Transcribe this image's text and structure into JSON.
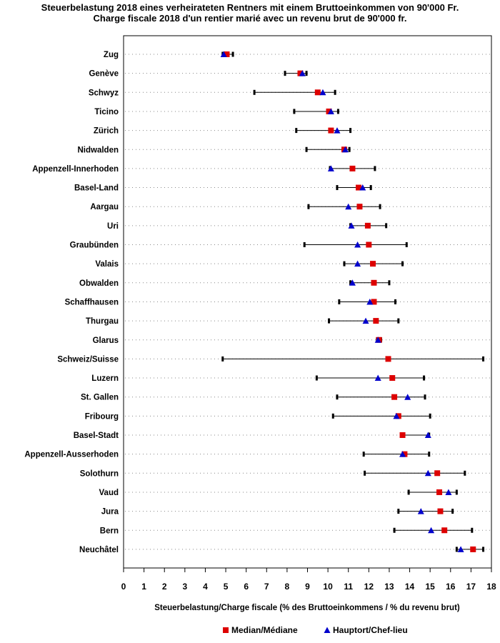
{
  "chart_data": {
    "type": "range-dot",
    "title": "Steuerbelastung 2018 eines verheirateten Rentners mit einem Bruttoeinkommen von 90'000 Fr.",
    "subtitle": "Charge fiscale 2018 d'un rentier marié avec un revenu brut de 90'000 fr.",
    "xlabel": "Steuerbelastung/Charge fiscale (% des Bruttoeinkommens / % du revenu brut)",
    "xlim": [
      0,
      18
    ],
    "xticks": [
      0,
      1,
      2,
      3,
      4,
      5,
      6,
      7,
      8,
      9,
      10,
      11,
      12,
      13,
      14,
      15,
      16,
      17,
      18
    ],
    "legend": [
      {
        "name": "Median/Médiane",
        "marker": "square",
        "color": "#dd0000"
      },
      {
        "name": "Hauptort/Chef-lieu",
        "marker": "triangle",
        "color": "#0000cc"
      }
    ],
    "cantons": [
      {
        "name": "Zug",
        "min": 4.85,
        "max": 5.35,
        "median": 5.05,
        "capital": 4.9
      },
      {
        "name": "Genève",
        "min": 7.9,
        "max": 8.95,
        "median": 8.65,
        "capital": 8.75
      },
      {
        "name": "Schwyz",
        "min": 6.4,
        "max": 10.35,
        "median": 9.5,
        "capital": 9.75
      },
      {
        "name": "Ticino",
        "min": 8.35,
        "max": 10.5,
        "median": 10.05,
        "capital": 10.15
      },
      {
        "name": "Zürich",
        "min": 8.45,
        "max": 11.1,
        "median": 10.15,
        "capital": 10.45
      },
      {
        "name": "Nidwalden",
        "min": 8.95,
        "max": 11.05,
        "median": 10.8,
        "capital": 10.85
      },
      {
        "name": "Appenzell-Innerhoden",
        "min": 10.1,
        "max": 12.3,
        "median": 11.2,
        "capital": 10.15
      },
      {
        "name": "Basel-Land",
        "min": 10.45,
        "max": 12.1,
        "median": 11.5,
        "capital": 11.7
      },
      {
        "name": "Aargau",
        "min": 9.05,
        "max": 12.55,
        "median": 11.55,
        "capital": 11.0
      },
      {
        "name": "Uri",
        "min": 11.1,
        "max": 12.85,
        "median": 11.95,
        "capital": 11.15
      },
      {
        "name": "Graubünden",
        "min": 8.85,
        "max": 13.85,
        "median": 12.0,
        "capital": 11.45
      },
      {
        "name": "Valais",
        "min": 10.8,
        "max": 13.65,
        "median": 12.2,
        "capital": 11.45
      },
      {
        "name": "Obwalden",
        "min": 11.1,
        "max": 13.0,
        "median": 12.25,
        "capital": 11.2
      },
      {
        "name": "Schaffhausen",
        "min": 10.55,
        "max": 13.3,
        "median": 12.25,
        "capital": 12.05
      },
      {
        "name": "Thurgau",
        "min": 10.05,
        "max": 13.45,
        "median": 12.35,
        "capital": 11.85
      },
      {
        "name": "Glarus",
        "min": 12.4,
        "max": 12.6,
        "median": 12.5,
        "capital": 12.45
      },
      {
        "name": "Schweiz/Suisse",
        "min": 4.85,
        "max": 17.6,
        "median": 12.95,
        "capital": null
      },
      {
        "name": "Luzern",
        "min": 9.45,
        "max": 14.7,
        "median": 13.15,
        "capital": 12.45
      },
      {
        "name": "St. Gallen",
        "min": 10.45,
        "max": 14.75,
        "median": 13.25,
        "capital": 13.9
      },
      {
        "name": "Fribourg",
        "min": 10.25,
        "max": 15.0,
        "median": 13.45,
        "capital": 13.35
      },
      {
        "name": "Basel-Stadt",
        "min": 13.6,
        "max": 14.95,
        "median": 13.65,
        "capital": 14.9
      },
      {
        "name": "Appenzell-Ausserhoden",
        "min": 11.75,
        "max": 14.95,
        "median": 13.75,
        "capital": 13.65
      },
      {
        "name": "Solothurn",
        "min": 11.8,
        "max": 16.7,
        "median": 15.35,
        "capital": 14.9
      },
      {
        "name": "Vaud",
        "min": 13.95,
        "max": 16.3,
        "median": 15.45,
        "capital": 15.9
      },
      {
        "name": "Jura",
        "min": 13.45,
        "max": 16.1,
        "median": 15.5,
        "capital": 14.55
      },
      {
        "name": "Bern",
        "min": 13.25,
        "max": 17.05,
        "median": 15.7,
        "capital": 15.05
      },
      {
        "name": "Neuchâtel",
        "min": 16.3,
        "max": 17.6,
        "median": 17.1,
        "capital": 16.5
      }
    ]
  }
}
